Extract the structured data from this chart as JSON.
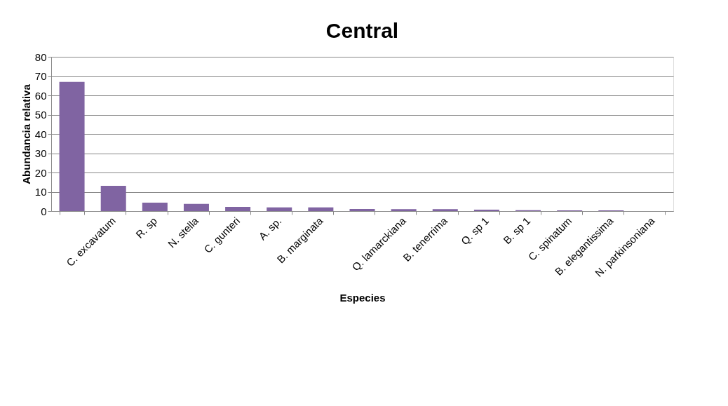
{
  "chart_data": {
    "type": "bar",
    "title": "Central",
    "xlabel": "Especies",
    "ylabel": "Abundancia relativa",
    "categories": [
      null,
      "C. excavatum",
      "R. sp",
      "N. stella",
      "C. gunteri",
      "A. sp.",
      "B. marginata",
      null,
      "Q. lamarckiana",
      "B. tenerrima",
      "Q. sp 1",
      "B. sp 1",
      "C. spinatum",
      "B. elegantissima",
      "N. parkinsoniana"
    ],
    "values": [
      67,
      13.1,
      4.4,
      3.7,
      2.2,
      1.9,
      1.9,
      1.1,
      1.0,
      1.0,
      0.7,
      0.5,
      0.4,
      0.4,
      0
    ],
    "color": "#8064a2",
    "ylim": [
      0,
      80
    ],
    "yticks": [
      0,
      10,
      20,
      30,
      40,
      50,
      60,
      70,
      80
    ],
    "grid": "y"
  }
}
